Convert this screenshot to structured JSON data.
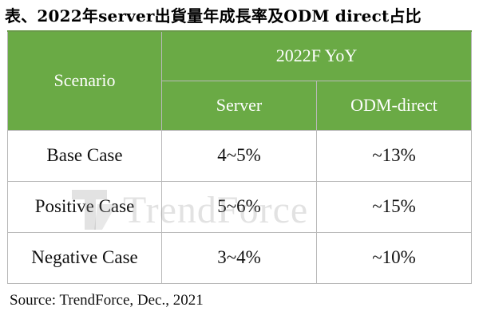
{
  "title": "表、2022年server出貨量年成長率及ODM direct占比",
  "table": {
    "header_scenario": "Scenario",
    "header_group": "2022F YoY",
    "header_columns": [
      "Server",
      "ODM-direct"
    ],
    "rows": [
      {
        "scenario": "Base Case",
        "server": "4~5%",
        "odm_direct": "~13%"
      },
      {
        "scenario": "Positive Case",
        "server": "5~6%",
        "odm_direct": "~15%"
      },
      {
        "scenario": "Negative Case",
        "server": "3~4%",
        "odm_direct": "~10%"
      }
    ]
  },
  "watermark": {
    "text": "TrendForce"
  },
  "source": "Source: TrendForce, Dec., 2021",
  "colors": {
    "header_bg": "#6aaa45",
    "header_text": "#ffffff",
    "border": "#b9b9b9",
    "watermark": "#969696"
  }
}
